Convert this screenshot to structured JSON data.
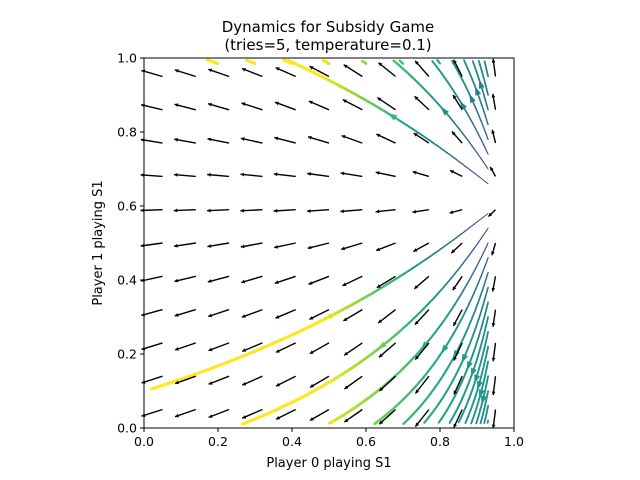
{
  "chart_data": {
    "type": "streamplot",
    "title": [
      "Dynamics for Subsidy Game",
      "(tries=5, temperature=0.1)"
    ],
    "xlabel": "Player 0 playing S1",
    "ylabel": "Player 1 playing S1",
    "xlim": [
      0.0,
      1.0
    ],
    "ylim": [
      0.0,
      1.0
    ],
    "xticks": [
      "0.0",
      "0.2",
      "0.4",
      "0.6",
      "0.8",
      "1.0"
    ],
    "yticks": [
      "0.0",
      "0.2",
      "0.4",
      "0.6",
      "0.8",
      "1.0"
    ],
    "grid": false,
    "colormap": "viridis",
    "quiver_color": "#000000",
    "quiver_grid": {
      "x": [
        0.05,
        0.14,
        0.23,
        0.32,
        0.41,
        0.5,
        0.59,
        0.68,
        0.77,
        0.86,
        0.95
      ],
      "y": [
        0.05,
        0.14,
        0.23,
        0.32,
        0.41,
        0.5,
        0.59,
        0.68,
        0.77,
        0.86,
        0.95
      ]
    },
    "rest_point": [
      0.98,
      0.62
    ]
  }
}
